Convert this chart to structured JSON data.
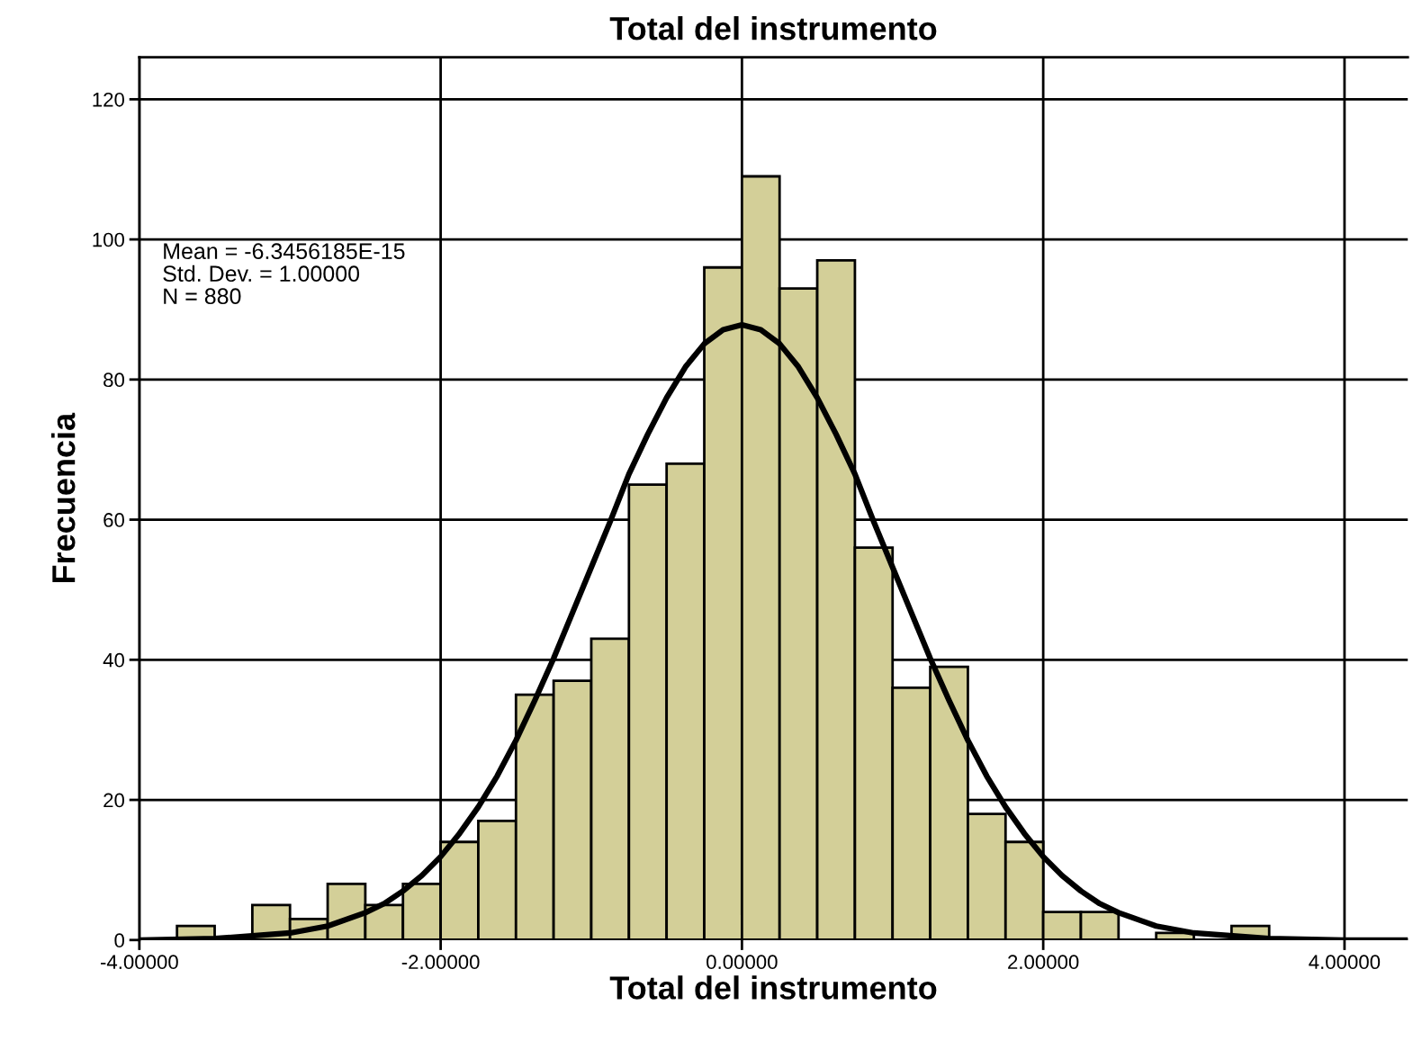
{
  "chart_data": [
    {
      "type": "histogram",
      "title": "Total del instrumento",
      "xlabel": "Total del instrumento",
      "ylabel": "Frecuencia",
      "bins": [
        -3.75,
        -3.5,
        -3.25,
        -3.0,
        -2.75,
        -2.5,
        -2.25,
        -2.0,
        -1.75,
        -1.5,
        -1.25,
        -1.0,
        -0.75,
        -0.5,
        -0.25,
        0.0,
        0.25,
        0.5,
        0.75,
        1.0,
        1.25,
        1.5,
        1.75,
        2.0,
        2.25,
        2.5,
        2.75,
        3.0,
        3.25,
        3.5
      ],
      "values": [
        2,
        0,
        5,
        3,
        8,
        5,
        8,
        14,
        17,
        35,
        37,
        43,
        65,
        68,
        96,
        109,
        93,
        97,
        56,
        36,
        39,
        18,
        14,
        4,
        4,
        0,
        1,
        null,
        2
      ],
      "color": "#d3cf98",
      "series": [
        {
          "type": "line",
          "color": "#000000",
          "x": [
            -4.0,
            -3.5,
            -3.0,
            -2.75,
            -2.5,
            -2.375,
            -2.25,
            -2.125,
            -2.0,
            -1.875,
            -1.75,
            -1.625,
            -1.5,
            -1.375,
            -1.25,
            -1.125,
            -1.0,
            -0.875,
            -0.75,
            -0.625,
            -0.5,
            -0.375,
            -0.25,
            -0.125,
            0.0,
            0.125,
            0.25,
            0.375,
            0.5,
            0.625,
            0.75,
            0.875,
            1.0,
            1.125,
            1.25,
            1.375,
            1.5,
            1.625,
            1.75,
            1.875,
            2.0,
            2.125,
            2.25,
            2.375,
            2.5,
            2.75,
            3.0,
            3.5,
            4.0,
            4.42
          ],
          "values": [
            0.0,
            0.2,
            1.0,
            2.0,
            3.9,
            5.2,
            7.0,
            9.2,
            11.9,
            15.2,
            19.0,
            23.4,
            28.5,
            34.2,
            40.2,
            46.7,
            53.2,
            59.7,
            66.5,
            72.2,
            77.4,
            81.8,
            85.1,
            87.1,
            87.8,
            87.1,
            85.1,
            81.8,
            77.4,
            72.2,
            66.5,
            59.7,
            53.2,
            46.7,
            40.2,
            34.2,
            28.5,
            23.4,
            19.0,
            15.2,
            11.9,
            9.2,
            7.0,
            5.2,
            3.9,
            2.0,
            1.0,
            0.2,
            0.0,
            0.0
          ]
        }
      ],
      "xlim": [
        -4.0,
        4.42
      ],
      "ylim": [
        0,
        126
      ],
      "xticks": [
        {
          "value": -4,
          "label": "-4.00000"
        },
        {
          "value": -2,
          "label": "-2.00000"
        },
        {
          "value": 0,
          "label": "0.00000"
        },
        {
          "value": 2,
          "label": "2.00000"
        },
        {
          "value": 4,
          "label": "4.00000"
        }
      ],
      "yticks": [
        0,
        20,
        40,
        60,
        80,
        100,
        120
      ],
      "grid": true,
      "annotations": [
        "Mean = -6.3456185E-15",
        "Std. Dev. = 1.00000",
        "N = 880"
      ]
    }
  ]
}
